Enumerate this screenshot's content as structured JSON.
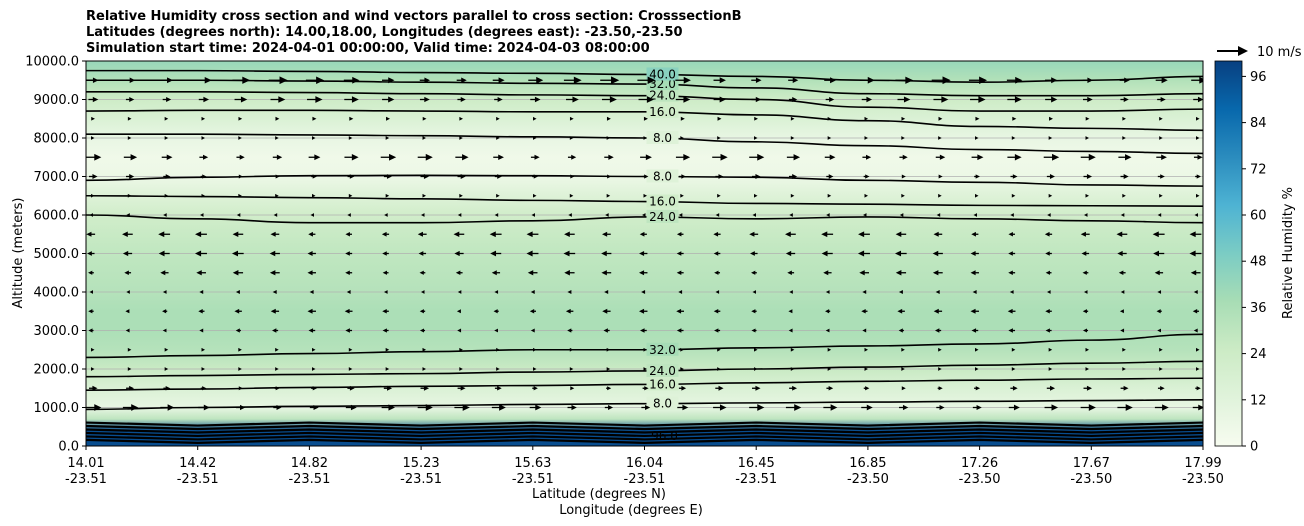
{
  "title_lines": [
    "Relative Humidity cross section and wind vectors parallel to cross section: CrosssectionB",
    "Latitudes (degrees north): 14.00,18.00, Longitudes (degrees east): -23.50,-23.50",
    "Simulation start time: 2024-04-01 00:00:00, Valid time: 2024-04-03 08:00:00"
  ],
  "chart_data": {
    "type": "heatmap",
    "subtype": "filled contour cross-section with wind vectors",
    "ylabel": "Altitude (meters)",
    "xlabel": "Latitude (degrees N)",
    "xlabel2": "Longitude (degrees E)",
    "ylim": [
      0,
      10000
    ],
    "y_ticks": [
      "0.0",
      "1000.0",
      "2000.0",
      "3000.0",
      "4000.0",
      "5000.0",
      "6000.0",
      "7000.0",
      "8000.0",
      "9000.0",
      "10000.0"
    ],
    "x_ticks": [
      {
        "lat": "14.01",
        "lon": "-23.51"
      },
      {
        "lat": "14.42",
        "lon": "-23.51"
      },
      {
        "lat": "14.82",
        "lon": "-23.51"
      },
      {
        "lat": "15.23",
        "lon": "-23.51"
      },
      {
        "lat": "15.63",
        "lon": "-23.51"
      },
      {
        "lat": "16.04",
        "lon": "-23.51"
      },
      {
        "lat": "16.45",
        "lon": "-23.51"
      },
      {
        "lat": "16.85",
        "lon": "-23.50"
      },
      {
        "lat": "17.26",
        "lon": "-23.50"
      },
      {
        "lat": "17.67",
        "lon": "-23.50"
      },
      {
        "lat": "17.99",
        "lon": "-23.50"
      }
    ],
    "grid": "horizontal",
    "colorbar": {
      "label": "Relative Humidity %",
      "ticks": [
        "0",
        "12",
        "24",
        "36",
        "48",
        "60",
        "72",
        "84",
        "96"
      ],
      "range": [
        0,
        100
      ],
      "colors": [
        "#f7fcf0",
        "#e0f3db",
        "#ccebc5",
        "#a8ddb5",
        "#7bccc4",
        "#4eb3d3",
        "#2b8cbe",
        "#0868ac",
        "#084081"
      ]
    },
    "wind_key": "10 m/s",
    "contour_levels": [
      "8.0",
      "16.0",
      "24.0",
      "32.0",
      "40.0",
      "48.0",
      "56.0",
      "96.0"
    ],
    "rh_profile": [
      {
        "alt": 0,
        "rh": 96
      },
      {
        "alt": 400,
        "rh": 96
      },
      {
        "alt": 700,
        "rh": 30
      },
      {
        "alt": 1000,
        "rh": 8
      },
      {
        "alt": 1500,
        "rh": 16
      },
      {
        "alt": 2000,
        "rh": 26
      },
      {
        "alt": 2500,
        "rh": 33
      },
      {
        "alt": 3000,
        "rh": 36
      },
      {
        "alt": 3500,
        "rh": 36
      },
      {
        "alt": 4000,
        "rh": 33
      },
      {
        "alt": 5000,
        "rh": 29
      },
      {
        "alt": 6000,
        "rh": 22
      },
      {
        "alt": 6500,
        "rh": 14
      },
      {
        "alt": 7000,
        "rh": 6
      },
      {
        "alt": 7500,
        "rh": 4
      },
      {
        "alt": 8000,
        "rh": 8
      },
      {
        "alt": 8500,
        "rh": 16
      },
      {
        "alt": 9000,
        "rh": 24
      },
      {
        "alt": 9500,
        "rh": 34
      },
      {
        "alt": 10000,
        "rh": 42
      }
    ],
    "contours": [
      {
        "level": "8.0",
        "alts": [
          950,
          1000,
          1030,
          1050,
          1080,
          1100,
          1120,
          1140,
          1160,
          1180,
          1200
        ]
      },
      {
        "level": "16.0",
        "alts": [
          1450,
          1480,
          1520,
          1550,
          1570,
          1600,
          1640,
          1680,
          1710,
          1740,
          1760
        ]
      },
      {
        "level": "24.0",
        "alts": [
          1800,
          1830,
          1860,
          1880,
          1920,
          1950,
          2000,
          2050,
          2100,
          2150,
          2200
        ]
      },
      {
        "level": "32.0",
        "alts": [
          2300,
          2350,
          2400,
          2450,
          2500,
          2500,
          2550,
          2600,
          2650,
          2750,
          2900
        ]
      },
      {
        "level": "24.0",
        "alts": [
          6000,
          5900,
          5800,
          5800,
          5850,
          5950,
          5900,
          5950,
          5900,
          5850,
          5800
        ]
      },
      {
        "level": "16.0",
        "alts": [
          6500,
          6480,
          6450,
          6420,
          6380,
          6350,
          6300,
          6280,
          6250,
          6240,
          6230
        ]
      },
      {
        "level": "8.0",
        "alts": [
          6900,
          6980,
          7020,
          7030,
          7020,
          7000,
          6980,
          6900,
          6850,
          6780,
          6750
        ]
      },
      {
        "level": "8.0",
        "alts": [
          8100,
          8100,
          8080,
          8060,
          8030,
          8000,
          7900,
          7800,
          7700,
          7650,
          7600
        ]
      },
      {
        "level": "16.0",
        "alts": [
          8700,
          8720,
          8720,
          8700,
          8680,
          8680,
          8600,
          8450,
          8300,
          8250,
          8200
        ]
      },
      {
        "level": "24.0",
        "alts": [
          9200,
          9200,
          9180,
          9150,
          9120,
          9100,
          9000,
          8800,
          8700,
          8700,
          8750
        ]
      },
      {
        "level": "32.0",
        "alts": [
          9500,
          9500,
          9480,
          9450,
          9420,
          9400,
          9300,
          9150,
          9100,
          9100,
          9150
        ]
      },
      {
        "level": "40.0",
        "alts": [
          9750,
          9750,
          9730,
          9700,
          9680,
          9650,
          9600,
          9500,
          9450,
          9500,
          9600
        ]
      }
    ],
    "wind_rows": [
      {
        "alt": 9500,
        "u": 5
      },
      {
        "alt": 9000,
        "u": 4
      },
      {
        "alt": 8500,
        "u": 1
      },
      {
        "alt": 8000,
        "u": 0.5
      },
      {
        "alt": 7500,
        "u": 4
      },
      {
        "alt": 7000,
        "u": 2
      },
      {
        "alt": 6500,
        "u": 0.5
      },
      {
        "alt": 6000,
        "u": -0.5
      },
      {
        "alt": 5500,
        "u": -3
      },
      {
        "alt": 5000,
        "u": -3
      },
      {
        "alt": 4500,
        "u": -2.5
      },
      {
        "alt": 4000,
        "u": -1
      },
      {
        "alt": 3500,
        "u": -2
      },
      {
        "alt": 3000,
        "u": -1.5
      },
      {
        "alt": 2500,
        "u": 0.5
      },
      {
        "alt": 2000,
        "u": 0.5
      },
      {
        "alt": 1500,
        "u": 2
      },
      {
        "alt": 1000,
        "u": 4
      }
    ]
  }
}
